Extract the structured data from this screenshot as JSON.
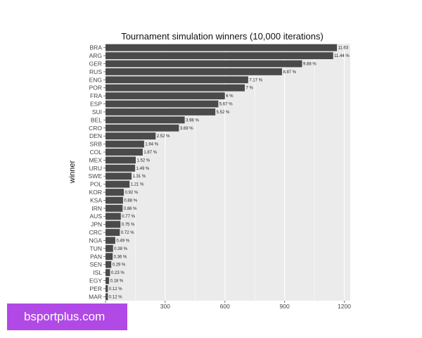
{
  "chart_data": {
    "type": "bar",
    "orientation": "horizontal",
    "title": "Tournament simulation winners (10,000 iterations)",
    "ylabel": "winner",
    "xlabel": "",
    "xlim": [
      0,
      1230
    ],
    "xticks": [
      0,
      300,
      600,
      900,
      1200
    ],
    "grid": true,
    "categories": [
      "BRA",
      "ARG",
      "GER",
      "RUS",
      "ENG",
      "POR",
      "FRA",
      "ESP",
      "SUI",
      "BEL",
      "CRO",
      "DEN",
      "SRB",
      "COL",
      "MEX",
      "URU",
      "SWE",
      "POL",
      "KOR",
      "KSA",
      "IRN",
      "AUS",
      "JPN",
      "CRC",
      "NGA",
      "TUN",
      "PAN",
      "SEN",
      "ISL",
      "EGY",
      "PER",
      "MAR"
    ],
    "values": [
      1163,
      1144,
      988,
      887,
      717,
      700,
      600,
      567,
      552,
      398,
      369,
      252,
      194,
      187,
      152,
      149,
      131,
      121,
      92,
      88,
      86,
      77,
      75,
      72,
      49,
      38,
      36,
      29,
      23,
      18,
      12,
      12
    ],
    "labels": [
      "11.63",
      "11.44 %",
      "9.88 %",
      "8.87 %",
      "7.17 %",
      "7 %",
      "6 %",
      "5.67 %",
      "5.52 %",
      "3.98 %",
      "3.69 %",
      "2.52 %",
      "1.94 %",
      "1.87 %",
      "1.52 %",
      "1.49 %",
      "1.31 %",
      "1.21 %",
      "0.92 %",
      "0.88 %",
      "0.86 %",
      "0.77 %",
      "0.75 %",
      "0.72 %",
      "0.49 %",
      "0.38 %",
      "0.36 %",
      "0.29 %",
      "0.23 %",
      "0.18 %",
      "0.12 %",
      "0.12 %"
    ],
    "colors": {
      "bar": "#4a4a4a",
      "panel": "#ebebeb",
      "grid": "#ffffff"
    }
  },
  "watermark": {
    "text": "bsportplus.com"
  }
}
